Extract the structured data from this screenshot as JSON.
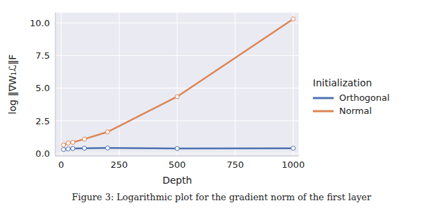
{
  "chart_data": {
    "type": "line",
    "title": "Figure 3: Logarithmic plot for the gradient norm of the first layer",
    "x_label": "Depth",
    "y_label": "log ‖∇W₁ℒ‖F",
    "legend_title": "Initialization",
    "x": [
      10,
      30,
      50,
      100,
      200,
      500,
      1000
    ],
    "series": [
      {
        "name": "Orthogonal",
        "color": "#4c72b0",
        "marker": "o",
        "values": [
          0.3,
          0.35,
          0.38,
          0.4,
          0.42,
          0.38,
          0.4
        ]
      },
      {
        "name": "Normal",
        "color": "#dd8452",
        "marker": "o",
        "values": [
          0.65,
          0.8,
          0.85,
          1.1,
          1.65,
          4.35,
          10.3
        ]
      }
    ],
    "xlim": [
      -25,
      1025
    ],
    "ylim": [
      -0.2,
      10.8
    ],
    "xticks": [
      0,
      250,
      500,
      750,
      1000
    ],
    "yticks": [
      {
        "value": 0,
        "label": "0.0"
      },
      {
        "value": 2.5,
        "label": "2.5"
      },
      {
        "value": 5,
        "label": "5.0"
      },
      {
        "value": 7.5,
        "label": "7.5"
      },
      {
        "value": 10,
        "label": "10.0"
      }
    ],
    "grid": true,
    "legend": "right"
  }
}
